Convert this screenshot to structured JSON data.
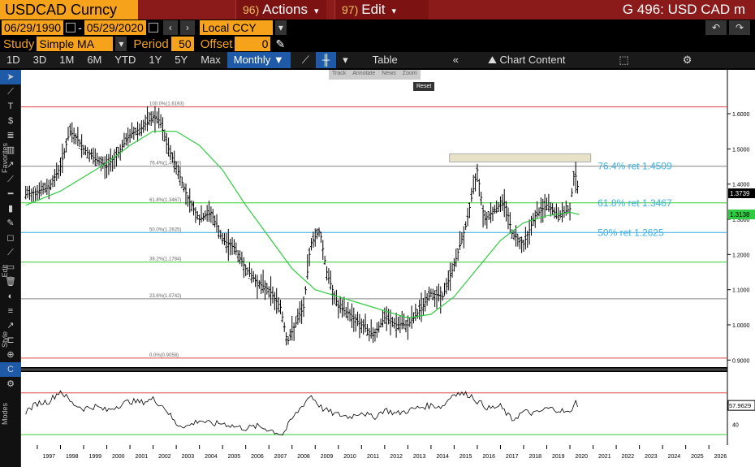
{
  "header": {
    "ticker": "USDCAD Curncy",
    "actions": {
      "num": "96)",
      "label": "Actions"
    },
    "edit": {
      "num": "97)",
      "label": "Edit"
    },
    "title": "G 496: USD CAD m"
  },
  "dates": {
    "start": "06/29/1990",
    "sep": "-",
    "end": "05/29/2020",
    "currency": "Local CCY"
  },
  "study": {
    "label": "Study",
    "value": "Simple MA",
    "period_label": "Period",
    "period": "50",
    "offset_label": "Offset",
    "offset": "0"
  },
  "toolbar": {
    "ranges": [
      "1D",
      "3D",
      "1M",
      "6M",
      "YTD",
      "1Y",
      "5Y",
      "Max"
    ],
    "frequency": "Monthly",
    "table": "Table",
    "chart_content": "Chart Content"
  },
  "annotate_popup": {
    "items": [
      "Track",
      "Annotate",
      "News",
      "Zoom"
    ],
    "reset": "Reset"
  },
  "sidebar": {
    "labels": [
      "Favorites",
      "Edit",
      "Style",
      "Modes"
    ]
  },
  "chart_data": {
    "type": "line",
    "title": "",
    "xlabel": "",
    "ylabel": "",
    "x_ticks": [
      "1997",
      "1998",
      "1999",
      "2000",
      "2001",
      "2002",
      "2003",
      "2004",
      "2005",
      "2006",
      "2007",
      "2008",
      "2009",
      "2010",
      "2011",
      "2012",
      "2013",
      "2014",
      "2015",
      "2016",
      "2017",
      "2018",
      "2019",
      "2020",
      "2021",
      "2022",
      "2023",
      "2024",
      "2025",
      "2026"
    ],
    "y_ticks": [
      "1.6000",
      "1.5000",
      "1.4000",
      "1.3000",
      "1.2000",
      "1.1000",
      "1.0000",
      "0.9000"
    ],
    "ylim": [
      0.88,
      1.72
    ],
    "last_price": "1.3739",
    "ma_value": "1.3138",
    "fib_levels": [
      {
        "label": "100.0%(1.6193)",
        "value": 1.6193,
        "color": "#d44"
      },
      {
        "label": "76.4%(1.4509)",
        "value": 1.4509,
        "color": "#888"
      },
      {
        "label": "61.8%(1.3467)",
        "value": 1.3467,
        "color": "#3c3"
      },
      {
        "label": "50.0%(1.2625)",
        "value": 1.2625,
        "color": "#3ad"
      },
      {
        "label": "38.2%(1.1784)",
        "value": 1.1784,
        "color": "#3c3"
      },
      {
        "label": "23.6%(1.0742)",
        "value": 1.0742,
        "color": "#888"
      },
      {
        "label": "0.0%(0.9058)",
        "value": 0.9058,
        "color": "#d44"
      }
    ],
    "annotations": [
      "76.4% ret 1.4509",
      "61.8% ret 1.3467",
      "50% ret 1.2625"
    ],
    "price": [
      [
        1996.5,
        1.37
      ],
      [
        1997,
        1.38
      ],
      [
        1997.5,
        1.39
      ],
      [
        1998,
        1.45
      ],
      [
        1998.4,
        1.55
      ],
      [
        1998.7,
        1.53
      ],
      [
        1999,
        1.5
      ],
      [
        1999.5,
        1.47
      ],
      [
        2000,
        1.45
      ],
      [
        2000.5,
        1.49
      ],
      [
        2001,
        1.54
      ],
      [
        2001.5,
        1.56
      ],
      [
        2002,
        1.59
      ],
      [
        2002.3,
        1.58
      ],
      [
        2002.6,
        1.51
      ],
      [
        2003,
        1.45
      ],
      [
        2003.5,
        1.36
      ],
      [
        2004,
        1.3
      ],
      [
        2004.5,
        1.32
      ],
      [
        2005,
        1.24
      ],
      [
        2005.5,
        1.22
      ],
      [
        2006,
        1.16
      ],
      [
        2006.5,
        1.12
      ],
      [
        2007,
        1.1
      ],
      [
        2007.5,
        1.05
      ],
      [
        2007.8,
        0.95
      ],
      [
        2008.2,
        1.01
      ],
      [
        2008.5,
        1.05
      ],
      [
        2008.8,
        1.23
      ],
      [
        2009.2,
        1.27
      ],
      [
        2009.5,
        1.15
      ],
      [
        2010,
        1.05
      ],
      [
        2010.5,
        1.03
      ],
      [
        2011,
        1.0
      ],
      [
        2011.5,
        0.97
      ],
      [
        2012,
        1.02
      ],
      [
        2012.5,
        1.0
      ],
      [
        2013,
        1.0
      ],
      [
        2013.5,
        1.04
      ],
      [
        2014,
        1.09
      ],
      [
        2014.5,
        1.08
      ],
      [
        2015,
        1.17
      ],
      [
        2015.5,
        1.28
      ],
      [
        2016,
        1.44
      ],
      [
        2016.3,
        1.3
      ],
      [
        2016.8,
        1.33
      ],
      [
        2017.2,
        1.35
      ],
      [
        2017.5,
        1.26
      ],
      [
        2018,
        1.23
      ],
      [
        2018.5,
        1.31
      ],
      [
        2019,
        1.34
      ],
      [
        2019.5,
        1.31
      ],
      [
        2020,
        1.33
      ],
      [
        2020.2,
        1.44
      ],
      [
        2020.4,
        1.37
      ]
    ],
    "ma50": [
      [
        1996.5,
        1.34
      ],
      [
        1998,
        1.38
      ],
      [
        1999,
        1.42
      ],
      [
        2000,
        1.46
      ],
      [
        2001,
        1.51
      ],
      [
        2002,
        1.55
      ],
      [
        2003,
        1.55
      ],
      [
        2004,
        1.51
      ],
      [
        2005,
        1.44
      ],
      [
        2006,
        1.34
      ],
      [
        2007,
        1.25
      ],
      [
        2008,
        1.16
      ],
      [
        2009,
        1.1
      ],
      [
        2010,
        1.08
      ],
      [
        2011,
        1.06
      ],
      [
        2012,
        1.04
      ],
      [
        2013,
        1.02
      ],
      [
        2014,
        1.03
      ],
      [
        2015,
        1.08
      ],
      [
        2016,
        1.16
      ],
      [
        2017,
        1.24
      ],
      [
        2018,
        1.29
      ],
      [
        2019,
        1.31
      ],
      [
        2020,
        1.32
      ],
      [
        2020.4,
        1.3138
      ]
    ],
    "rsi": {
      "y_ticks": [
        "40"
      ],
      "last": "57.9629",
      "upper": 70,
      "lower": 30,
      "values": [
        [
          1996.5,
          52
        ],
        [
          1997,
          60
        ],
        [
          1997.5,
          62
        ],
        [
          1998,
          72
        ],
        [
          1998.5,
          60
        ],
        [
          1999,
          55
        ],
        [
          1999.5,
          57
        ],
        [
          2000,
          53
        ],
        [
          2000.5,
          58
        ],
        [
          2001,
          62
        ],
        [
          2001.5,
          61
        ],
        [
          2002,
          64
        ],
        [
          2002.5,
          56
        ],
        [
          2003,
          40
        ],
        [
          2003.5,
          38
        ],
        [
          2004,
          44
        ],
        [
          2004.5,
          40
        ],
        [
          2005,
          41
        ],
        [
          2005.5,
          38
        ],
        [
          2006,
          36
        ],
        [
          2006.5,
          38
        ],
        [
          2007,
          35
        ],
        [
          2007.6,
          30
        ],
        [
          2008,
          45
        ],
        [
          2008.8,
          68
        ],
        [
          2009.3,
          55
        ],
        [
          2009.8,
          50
        ],
        [
          2010.5,
          47
        ],
        [
          2011,
          52
        ],
        [
          2011.5,
          46
        ],
        [
          2012,
          54
        ],
        [
          2012.5,
          50
        ],
        [
          2013,
          53
        ],
        [
          2013.5,
          56
        ],
        [
          2014,
          58
        ],
        [
          2014.5,
          57
        ],
        [
          2015,
          70
        ],
        [
          2015.7,
          68
        ],
        [
          2016,
          62
        ],
        [
          2016.5,
          55
        ],
        [
          2017,
          57
        ],
        [
          2017.5,
          44
        ],
        [
          2018,
          52
        ],
        [
          2018.5,
          50
        ],
        [
          2019,
          55
        ],
        [
          2019.5,
          54
        ],
        [
          2020,
          50
        ],
        [
          2020.2,
          62
        ],
        [
          2020.4,
          58
        ]
      ]
    }
  }
}
